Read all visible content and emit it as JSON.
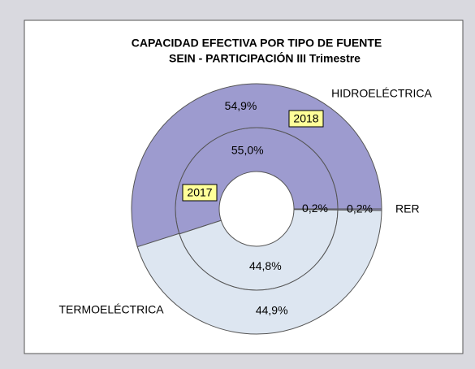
{
  "chart_data": {
    "type": "donut",
    "title": "CAPACIDAD  EFECTIVA POR TIPO DE FUENTE",
    "subtitle": "SEIN - PARTICIPACIÓN III Trimestre",
    "categories": [
      "HIDROELÉCTRICA",
      "TERMOELÉCTRICA",
      "RER"
    ],
    "colors": [
      "#9d9bcf",
      "#dde6f1",
      "#9d9bcf"
    ],
    "series": [
      {
        "name": "2017",
        "values": [
          55.0,
          44.8,
          0.2
        ],
        "value_labels": [
          "55,0%",
          "44,8%",
          "0,2%"
        ]
      },
      {
        "name": "2018",
        "values": [
          54.9,
          44.9,
          0.2
        ],
        "value_labels": [
          "54,9%",
          "44,9%",
          "0,2%"
        ]
      }
    ]
  }
}
